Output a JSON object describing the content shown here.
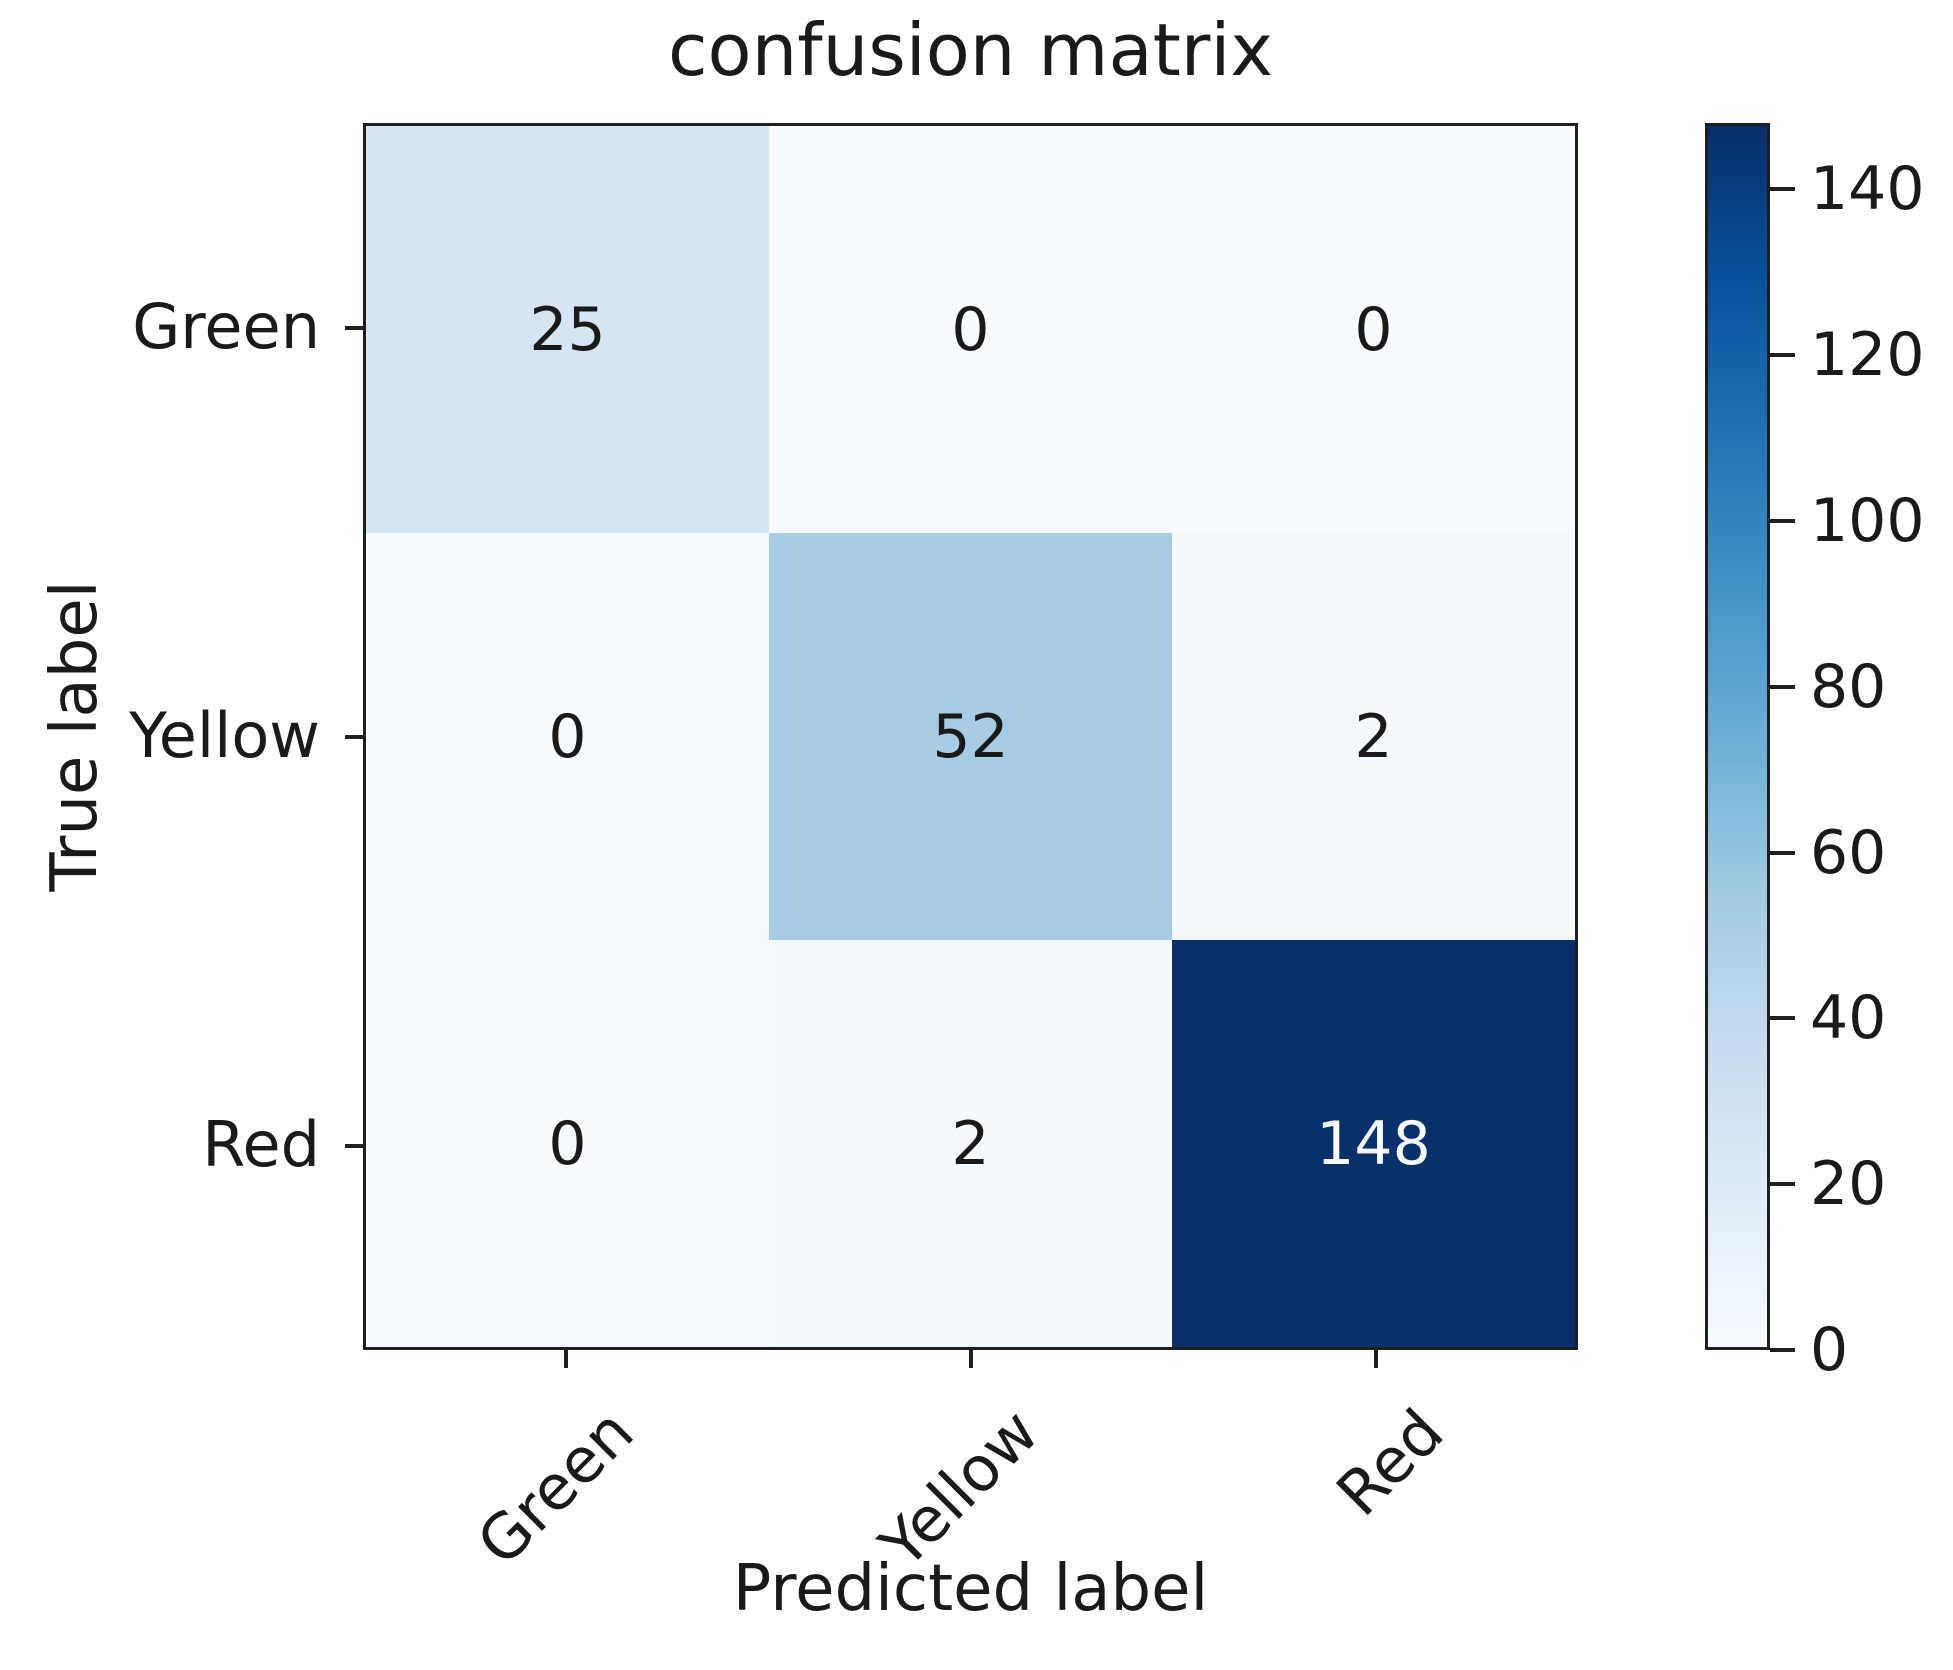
{
  "figure": {
    "background": "#ffffff",
    "text_color": "#1a1a1a",
    "spine_color": "#1f1f1f"
  },
  "chart_data": {
    "type": "heatmap",
    "title": "confusion matrix",
    "xlabel": "Predicted label",
    "ylabel": "True label",
    "x_categories": [
      "Green",
      "Yellow",
      "Red"
    ],
    "y_categories": [
      "Green",
      "Yellow",
      "Red"
    ],
    "matrix": [
      [
        25,
        0,
        0
      ],
      [
        0,
        52,
        2
      ],
      [
        0,
        2,
        148
      ]
    ],
    "vmin": 0,
    "vmax": 148,
    "colorbar_ticks": [
      0,
      20,
      40,
      60,
      80,
      100,
      120,
      140
    ],
    "colormap": "Blues",
    "colormap_stops": [
      "#f7fbff",
      "#deebf7",
      "#c6dbef",
      "#9ecae1",
      "#6baed6",
      "#4292c6",
      "#2171b5",
      "#08519c",
      "#08306b"
    ],
    "cell_text_dark": "#1a1a1a",
    "cell_text_light": "#f7fbff",
    "x_tick_rotation_deg": 45,
    "grid": false,
    "legend_position": "right-colorbar"
  }
}
